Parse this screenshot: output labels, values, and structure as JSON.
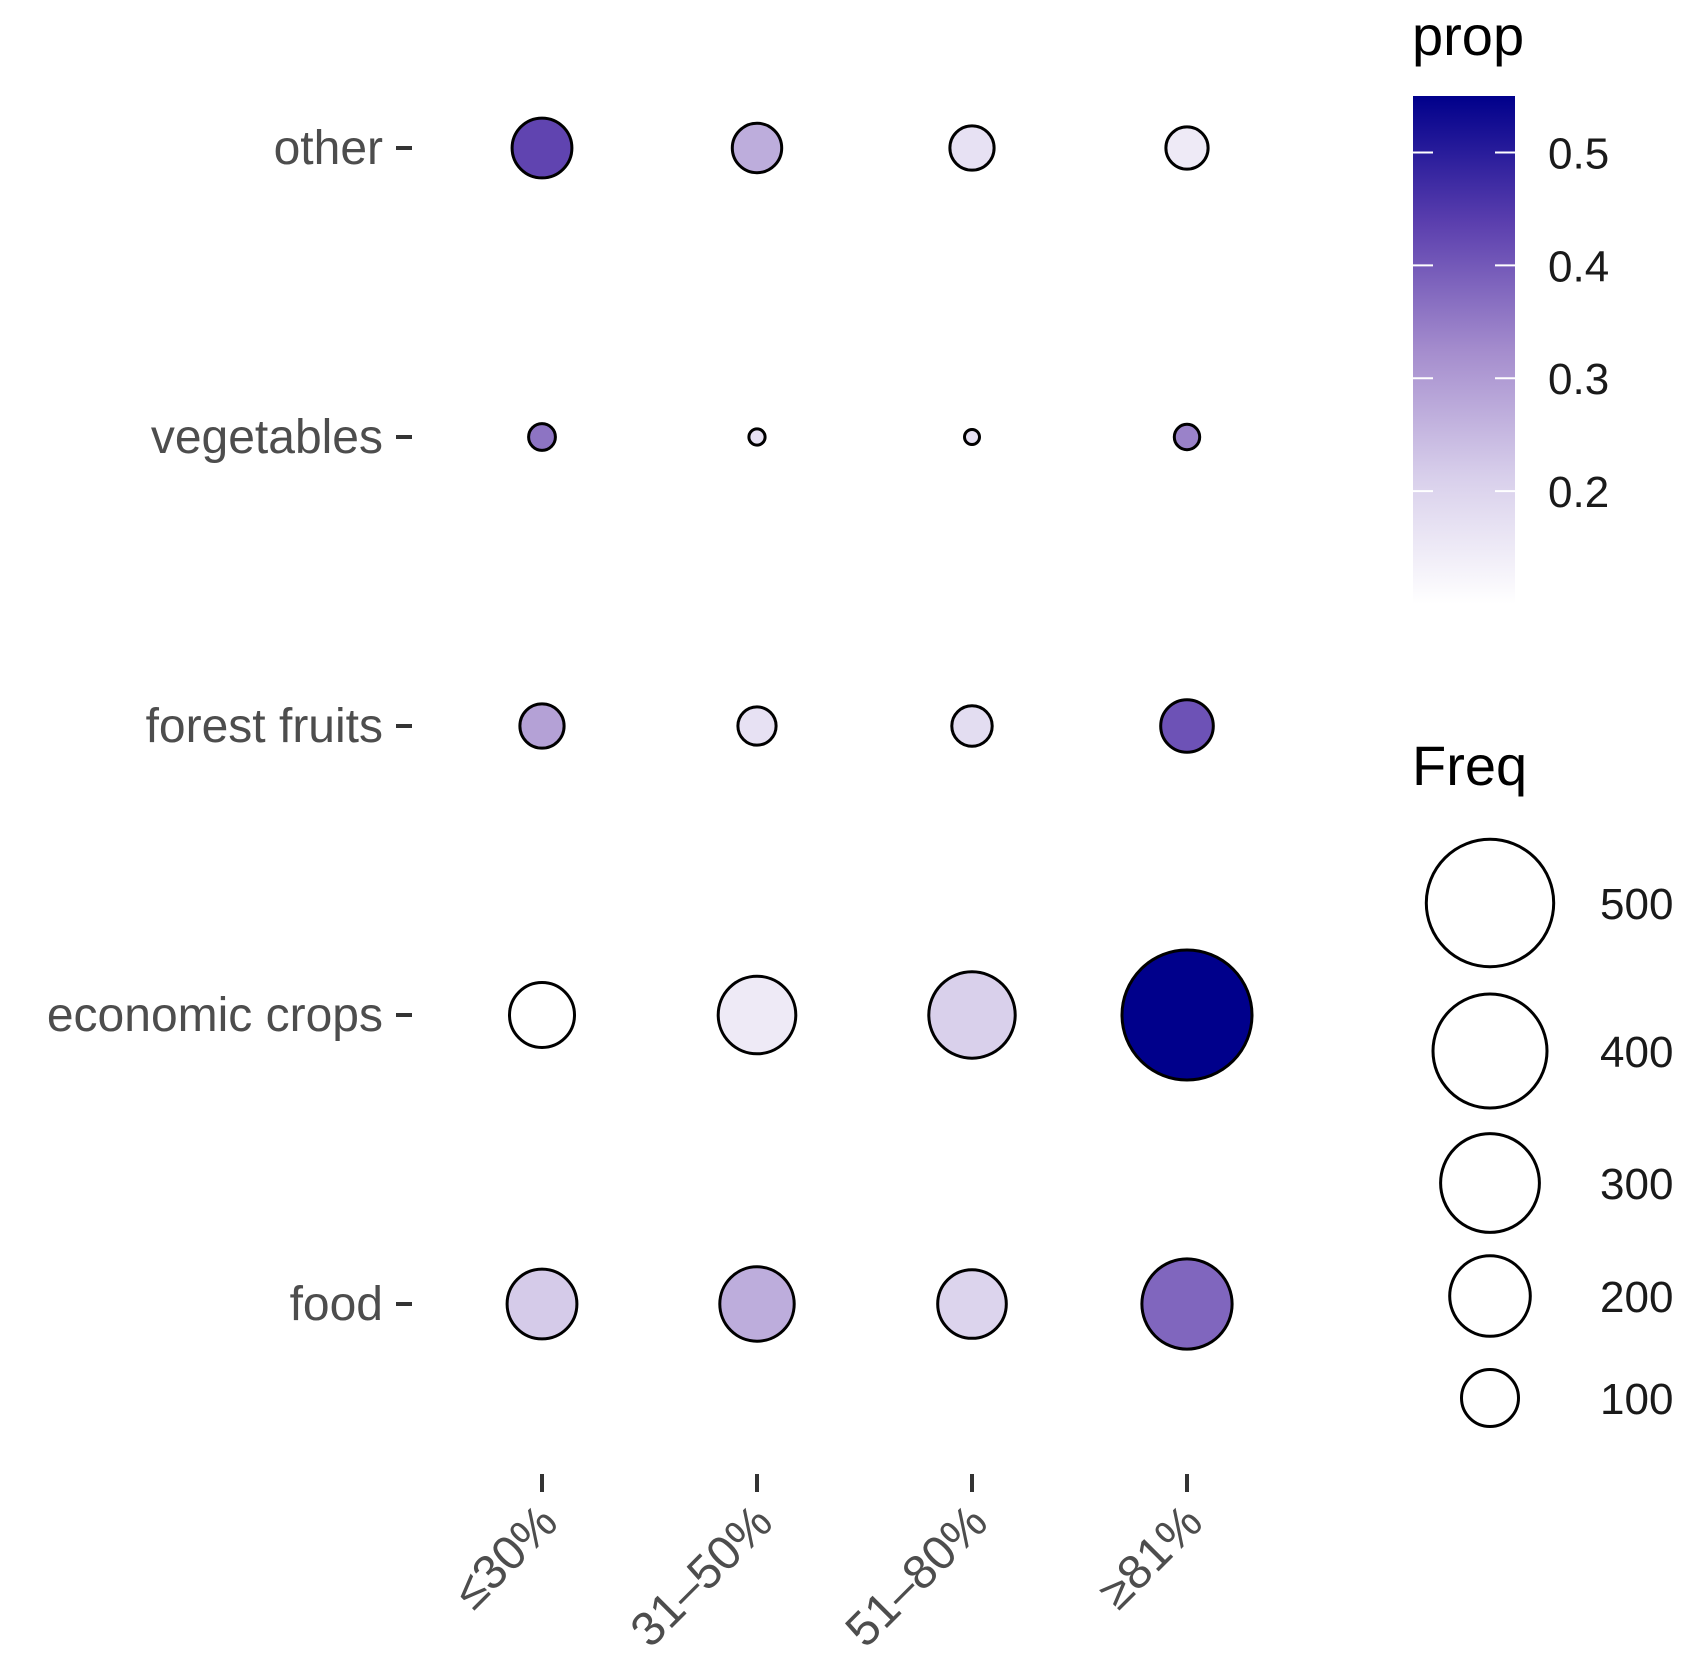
{
  "chart_data": {
    "type": "bubble",
    "x_categories": [
      "≤30%",
      "31–50%",
      "51–80%",
      "≥81%"
    ],
    "y_categories": [
      "other",
      "vegetables",
      "forest fruits",
      "economic crops",
      "food"
    ],
    "points": [
      {
        "x": "≤30%",
        "y": "other",
        "freq": 110,
        "prop": 0.43
      },
      {
        "x": "31–50%",
        "y": "other",
        "freq": 75,
        "prop": 0.27
      },
      {
        "x": "51–80%",
        "y": "other",
        "freq": 60,
        "prop": 0.17
      },
      {
        "x": "≥81%",
        "y": "other",
        "freq": 55,
        "prop": 0.15
      },
      {
        "x": "≤30%",
        "y": "vegetables",
        "freq": 22,
        "prop": 0.36
      },
      {
        "x": "31–50%",
        "y": "vegetables",
        "freq": 8,
        "prop": 0.17
      },
      {
        "x": "51–80%",
        "y": "vegetables",
        "freq": 7,
        "prop": 0.17
      },
      {
        "x": "≥81%",
        "y": "vegetables",
        "freq": 20,
        "prop": 0.34
      },
      {
        "x": "≤30%",
        "y": "forest fruits",
        "freq": 60,
        "prop": 0.29
      },
      {
        "x": "31–50%",
        "y": "forest fruits",
        "freq": 45,
        "prop": 0.17
      },
      {
        "x": "51–80%",
        "y": "forest fruits",
        "freq": 50,
        "prop": 0.18
      },
      {
        "x": "≥81%",
        "y": "forest fruits",
        "freq": 85,
        "prop": 0.41
      },
      {
        "x": "≤30%",
        "y": "economic crops",
        "freq": 130,
        "prop": 0.1
      },
      {
        "x": "31–50%",
        "y": "economic crops",
        "freq": 185,
        "prop": 0.15
      },
      {
        "x": "51–80%",
        "y": "economic crops",
        "freq": 230,
        "prop": 0.21
      },
      {
        "x": "≥81%",
        "y": "economic crops",
        "freq": 520,
        "prop": 0.55
      },
      {
        "x": "≤30%",
        "y": "food",
        "freq": 150,
        "prop": 0.22
      },
      {
        "x": "31–50%",
        "y": "food",
        "freq": 170,
        "prop": 0.27
      },
      {
        "x": "51–80%",
        "y": "food",
        "freq": 145,
        "prop": 0.2
      },
      {
        "x": "≥81%",
        "y": "food",
        "freq": 250,
        "prop": 0.38
      }
    ],
    "color_legend": {
      "title": "prop",
      "range": [
        0.1,
        0.55
      ],
      "ticks": [
        0.5,
        0.4,
        0.3,
        0.2
      ],
      "tick_labels": [
        "0.5",
        "0.4",
        "0.3",
        "0.2"
      ],
      "low_color": "#ffffff",
      "high_color": "#00008b"
    },
    "size_legend": {
      "title": "Freq",
      "values": [
        500,
        400,
        300,
        200,
        100
      ],
      "labels": [
        "500",
        "400",
        "300",
        "200",
        "100"
      ]
    }
  }
}
